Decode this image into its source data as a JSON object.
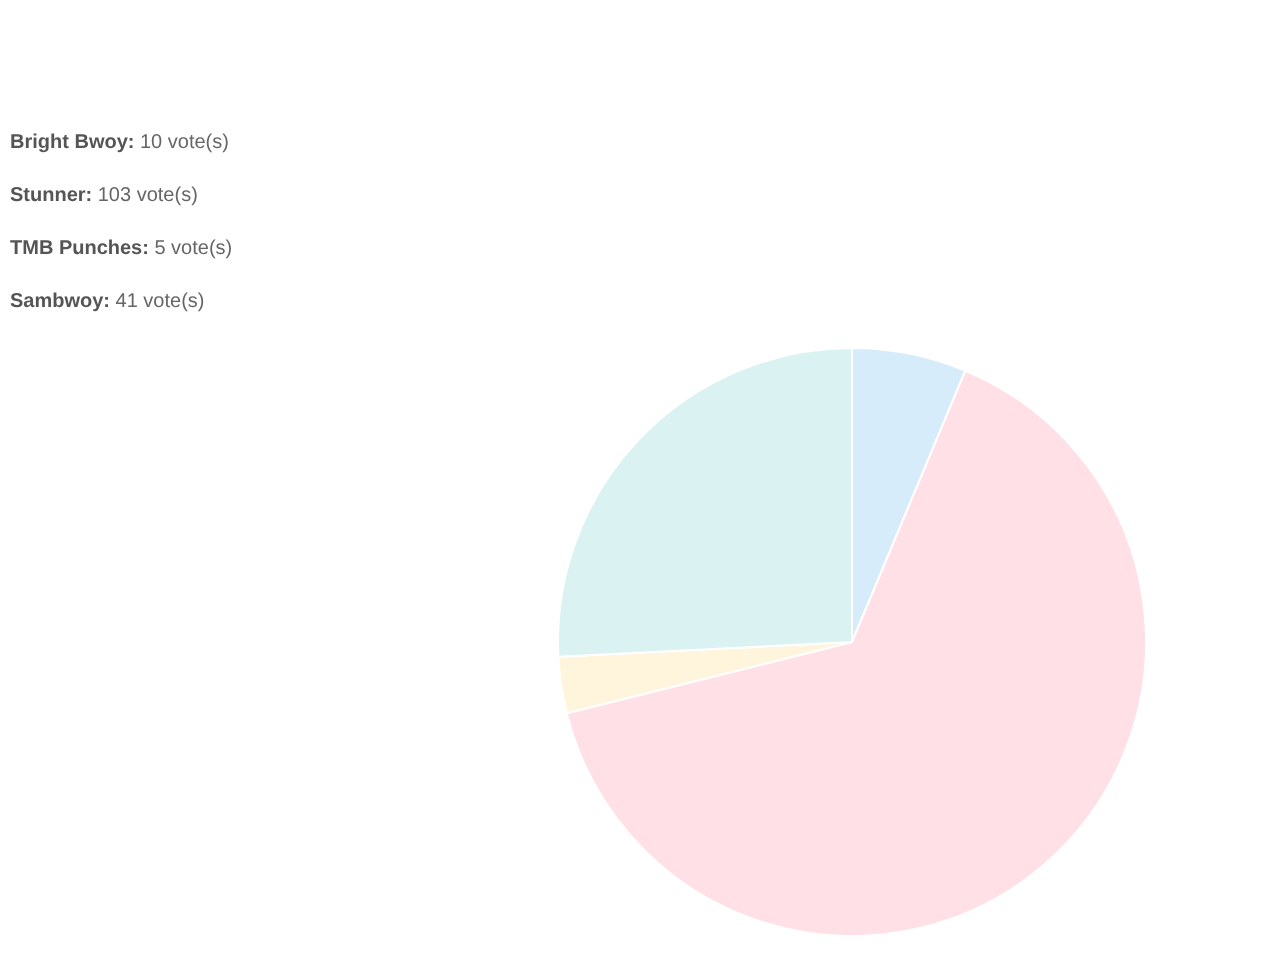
{
  "chart_data": {
    "type": "pie",
    "categories": [
      null,
      null,
      null,
      null
    ],
    "values": [
      6.3,
      64.8,
      3.1,
      25.8
    ],
    "colors": [
      "#d7ecfb",
      "#ffe0e6",
      "#fff5dd",
      "#dbf2f2"
    ],
    "annotations": [
      "Bright Bwoy: 10 vote(s)",
      "Stunner: 103 vote(s)",
      "TMB Punches: 5 vote(s)",
      "Sambwoy: 41 vote(s)"
    ]
  }
}
